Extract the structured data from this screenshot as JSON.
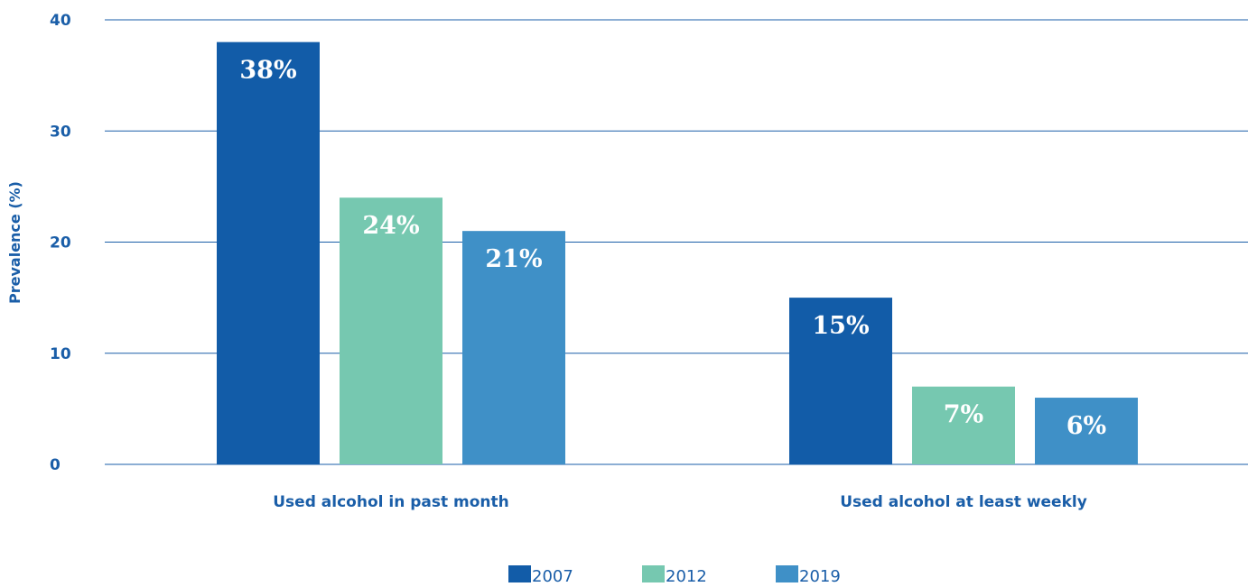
{
  "chart_data": {
    "type": "bar",
    "title": "",
    "xlabel": "",
    "ylabel": "Prevalence (%)",
    "ylim": [
      0,
      40
    ],
    "yticks": [
      0,
      10,
      20,
      30,
      40
    ],
    "grid": true,
    "legend_position": "bottom-center",
    "categories": [
      "Used alcohol in past month",
      "Used alcohol at least weekly"
    ],
    "series": [
      {
        "name": "2007",
        "color": "#125ca8",
        "values": [
          38,
          15
        ],
        "labels": [
          "38%",
          "15%"
        ]
      },
      {
        "name": "2012",
        "color": "#76c8b0",
        "values": [
          24,
          7
        ],
        "labels": [
          "24%",
          "7%"
        ]
      },
      {
        "name": "2019",
        "color": "#3f90c7",
        "values": [
          21,
          6
        ],
        "labels": [
          "21%",
          "6%"
        ]
      }
    ]
  }
}
